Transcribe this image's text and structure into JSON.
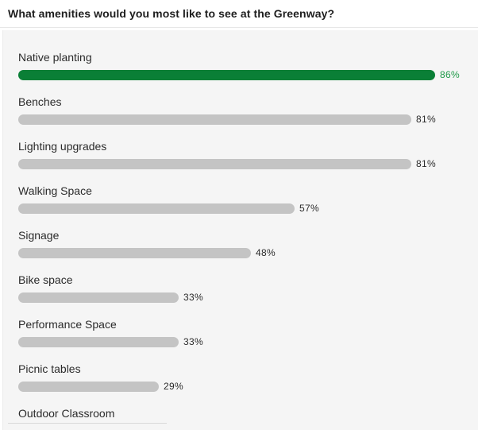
{
  "survey": {
    "question": "What amenities would you most like to see at the Greenway?",
    "top_color": "#0a7f36",
    "bar_color": "#c4c4c4",
    "options": [
      {
        "label": "Native planting",
        "pct": "86%",
        "value": 86,
        "top": true
      },
      {
        "label": "Benches",
        "pct": "81%",
        "value": 81,
        "top": false
      },
      {
        "label": "Lighting upgrades",
        "pct": "81%",
        "value": 81,
        "top": false
      },
      {
        "label": "Walking Space",
        "pct": "57%",
        "value": 57,
        "top": false
      },
      {
        "label": "Signage",
        "pct": "48%",
        "value": 48,
        "top": false
      },
      {
        "label": "Bike space",
        "pct": "33%",
        "value": 33,
        "top": false
      },
      {
        "label": "Performance Space",
        "pct": "33%",
        "value": 33,
        "top": false
      },
      {
        "label": "Picnic tables",
        "pct": "29%",
        "value": 29,
        "top": false
      },
      {
        "label": "Outdoor Classroom",
        "pct": "",
        "value": null,
        "top": false
      }
    ]
  }
}
